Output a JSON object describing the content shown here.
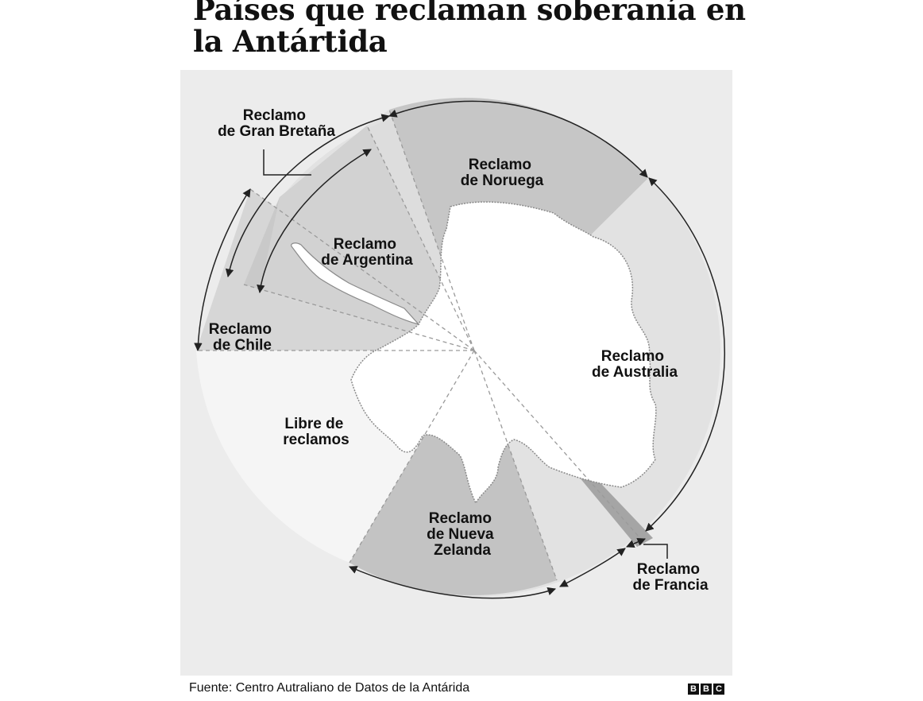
{
  "title": "Países que reclaman soberanía en la Antártida",
  "map": {
    "labels": {
      "gran_bretana": [
        "Reclamo",
        "de Gran Bretaña"
      ],
      "noruega": [
        "Reclamo",
        "de Noruega"
      ],
      "argentina": [
        "Reclamo",
        "de Argentina"
      ],
      "chile": [
        "Reclamo",
        "de Chile"
      ],
      "australia": [
        "Reclamo",
        "de Australia"
      ],
      "libre": [
        "Libre de",
        "reclamos"
      ],
      "nueva_zelanda": [
        "Reclamo",
        "de Nueva",
        "Zelanda"
      ],
      "francia": [
        "Reclamo",
        "de Francia"
      ]
    },
    "colors": {
      "background": "#ececec",
      "circle": "#e2e2e2",
      "norway": "#c6c6c6",
      "argentina": "#c9c9c9",
      "chile": "#d6d6d6",
      "new_zealand": "#c3c3c3",
      "france": "#a5a5a5",
      "uk": "#dbdbdb",
      "australia_fill": "#e4e4e4",
      "unclaimed": "#ffffff"
    }
  },
  "footer": {
    "source": "Fuente: Centro Autraliano de Datos de la Antárida",
    "logo": [
      "B",
      "B",
      "C"
    ]
  }
}
